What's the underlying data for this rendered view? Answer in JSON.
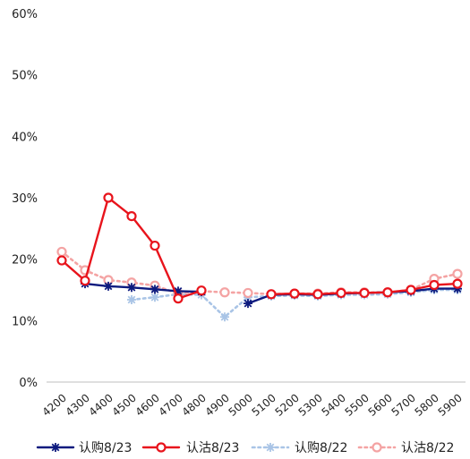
{
  "chart_data": {
    "type": "line",
    "x": [
      "4200",
      "4300",
      "4400",
      "4500",
      "4600",
      "4700",
      "4800",
      "4900",
      "5000",
      "5100",
      "5200",
      "5300",
      "5400",
      "5500",
      "5600",
      "5700",
      "5800",
      "5900"
    ],
    "ylim": [
      0,
      60
    ],
    "yticks": [
      0,
      10,
      20,
      30,
      40,
      50,
      60
    ],
    "ytick_labels": [
      "0%",
      "10%",
      "20%",
      "30%",
      "40%",
      "50%",
      "60%"
    ],
    "grid": false,
    "legend_position": "bottom",
    "series": [
      {
        "name": "认购8/23",
        "color": "#0d1a7e",
        "style": "solid",
        "marker": "star",
        "values": [
          null,
          16.0,
          15.6,
          15.4,
          15.1,
          14.8,
          14.7,
          null,
          12.8,
          14.2,
          14.3,
          14.2,
          14.4,
          14.5,
          14.6,
          14.8,
          15.2,
          15.2
        ]
      },
      {
        "name": "认沽8/23",
        "color": "#e8141c",
        "style": "solid",
        "marker": "circle",
        "values": [
          19.8,
          16.5,
          30.0,
          27.0,
          22.2,
          13.6,
          14.9,
          null,
          null,
          14.3,
          14.4,
          14.3,
          14.5,
          14.5,
          14.6,
          15.0,
          15.8,
          16.0
        ]
      },
      {
        "name": "认购8/22",
        "color": "#a9c4e6",
        "style": "dotted",
        "marker": "star",
        "values": [
          null,
          null,
          null,
          13.4,
          13.8,
          14.3,
          14.2,
          10.6,
          13.8,
          14.0,
          14.1,
          14.0,
          14.2,
          14.2,
          14.3,
          14.6,
          15.0,
          15.0
        ]
      },
      {
        "name": "认沽8/22",
        "color": "#f4a3a3",
        "style": "dotted",
        "marker": "circle",
        "values": [
          21.2,
          18.2,
          16.6,
          16.2,
          15.7,
          14.4,
          14.8,
          14.6,
          14.5,
          14.3,
          14.4,
          14.4,
          14.6,
          14.6,
          14.6,
          15.0,
          16.8,
          17.6
        ]
      }
    ]
  }
}
